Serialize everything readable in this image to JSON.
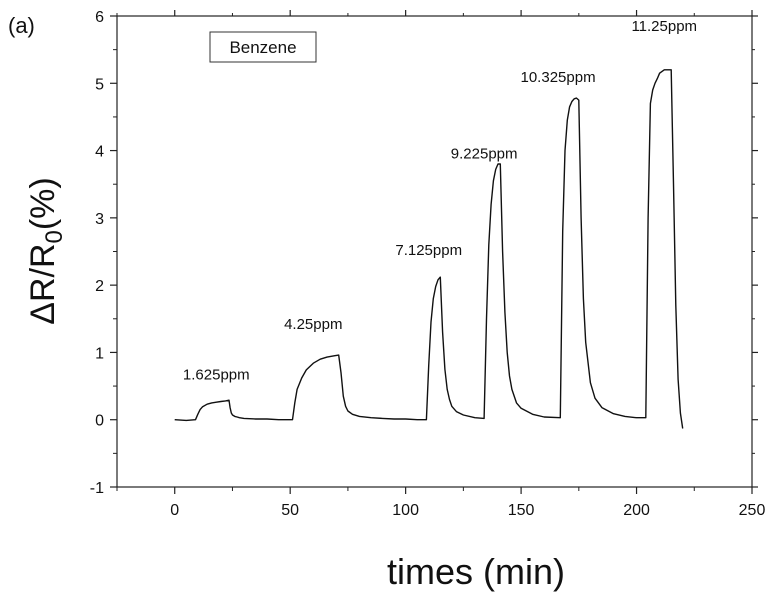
{
  "chart_data": {
    "type": "line",
    "panel_label": "(a)",
    "legend_box": "Benzene",
    "xlabel": "times (min)",
    "ylabel": {
      "main": "ΔR/R",
      "sub": "0",
      "tail": "(%)"
    },
    "xlim": [
      -25,
      250
    ],
    "ylim": [
      -1,
      6
    ],
    "x_ticks": [
      "0",
      "50",
      "100",
      "150",
      "200",
      "250"
    ],
    "y_ticks": [
      "-1",
      "0",
      "1",
      "2",
      "3",
      "4",
      "5",
      "6"
    ],
    "series": [
      {
        "x": [
          0,
          5,
          9,
          10,
          11,
          12,
          14,
          16,
          18,
          20,
          22,
          23.5,
          24,
          24.5,
          25,
          26,
          27,
          28,
          30,
          35,
          40,
          45,
          51,
          52,
          53,
          55,
          57,
          60,
          63,
          66,
          69,
          71,
          72,
          73,
          74,
          75,
          77,
          80,
          85,
          90,
          95,
          100,
          105,
          109,
          110,
          111,
          112,
          113,
          114,
          115,
          116,
          117,
          118,
          119,
          120,
          122,
          125,
          130,
          134,
          135,
          136,
          137,
          138,
          139,
          140,
          141,
          142,
          143,
          144,
          145,
          146,
          148,
          150,
          155,
          160,
          167,
          168,
          169,
          170,
          171,
          172,
          173,
          174,
          175,
          176,
          177,
          178,
          180,
          182,
          185,
          190,
          195,
          200,
          204,
          205,
          206,
          207,
          208,
          209,
          210,
          212,
          214,
          215,
          216,
          217,
          218,
          219,
          220
        ],
        "y": [
          0.0,
          -0.01,
          0.0,
          0.08,
          0.15,
          0.19,
          0.23,
          0.25,
          0.26,
          0.27,
          0.28,
          0.29,
          0.18,
          0.1,
          0.07,
          0.05,
          0.04,
          0.03,
          0.02,
          0.01,
          0.01,
          0.0,
          0.0,
          0.25,
          0.45,
          0.62,
          0.74,
          0.84,
          0.9,
          0.93,
          0.95,
          0.96,
          0.7,
          0.35,
          0.2,
          0.13,
          0.08,
          0.05,
          0.03,
          0.02,
          0.01,
          0.01,
          0.0,
          0.0,
          0.8,
          1.45,
          1.8,
          1.98,
          2.08,
          2.12,
          1.3,
          0.75,
          0.45,
          0.3,
          0.2,
          0.12,
          0.07,
          0.03,
          0.02,
          1.5,
          2.6,
          3.2,
          3.55,
          3.72,
          3.8,
          3.8,
          2.5,
          1.6,
          1.0,
          0.65,
          0.45,
          0.25,
          0.17,
          0.08,
          0.04,
          0.03,
          2.8,
          4.0,
          4.45,
          4.65,
          4.73,
          4.77,
          4.78,
          4.75,
          3.0,
          1.8,
          1.15,
          0.55,
          0.32,
          0.18,
          0.09,
          0.05,
          0.03,
          0.03,
          3.0,
          4.7,
          4.9,
          5.0,
          5.07,
          5.15,
          5.2,
          5.2,
          5.2,
          3.5,
          1.7,
          0.6,
          0.1,
          -0.13
        ]
      }
    ],
    "annotations": [
      {
        "text": "1.625ppm",
        "x": 18,
        "y": 0.6
      },
      {
        "text": "4.25ppm",
        "x": 60,
        "y": 1.35
      },
      {
        "text": "7.125ppm",
        "x": 110,
        "y": 2.45
      },
      {
        "text": "9.225ppm",
        "x": 134,
        "y": 3.88
      },
      {
        "text": "10.325ppm",
        "x": 166,
        "y": 5.02
      },
      {
        "text": "11.25ppm",
        "x": 212,
        "y": 5.78
      }
    ],
    "grid": false,
    "line_color": "#111111"
  }
}
